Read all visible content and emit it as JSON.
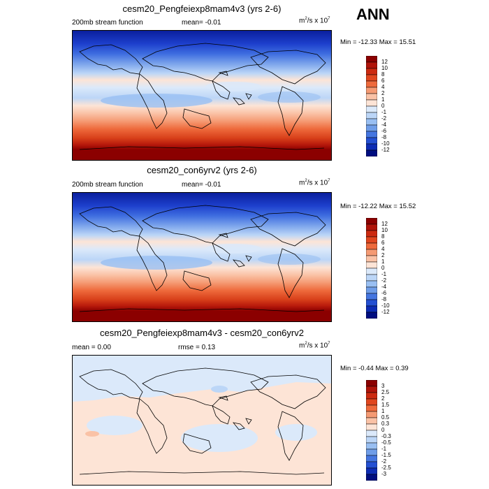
{
  "season": "ANN",
  "panels": [
    {
      "title": "cesm20_Pengfeiexp8mam4v3 (yrs 2-6)",
      "left_label": "200mb stream function",
      "mid_label": "mean=  -0.01",
      "units": "m",
      "units_sup1": "2",
      "units_mid": "/s x 10",
      "units_sup2": "7",
      "minmax": "Min = -12.33 Max =  15.51"
    },
    {
      "title": "cesm20_con6yrv2 (yrs 2-6)",
      "left_label": "200mb stream function",
      "mid_label": "mean=  -0.01",
      "units": "m",
      "units_sup1": "2",
      "units_mid": "/s x 10",
      "units_sup2": "7",
      "minmax": "Min = -12.22 Max =  15.52"
    },
    {
      "title": "cesm20_Pengfeiexp8mam4v3 - cesm20_con6yrv2",
      "left_label": "mean =   0.00",
      "mid_label": "rmse =   0.13",
      "units": "m",
      "units_sup1": "2",
      "units_mid": "/s x 10",
      "units_sup2": "7",
      "minmax": "Min = -0.44 Max =   0.39"
    }
  ],
  "colorbars": {
    "field": {
      "labels": [
        "12",
        "10",
        "8",
        "6",
        "4",
        "2",
        "1",
        "0",
        "-1",
        "-2",
        "-4",
        "-6",
        "-8",
        "-10",
        "-12"
      ],
      "colors": [
        "#8b0000",
        "#b0140a",
        "#cc2a10",
        "#e0461e",
        "#ee6a3c",
        "#f59a73",
        "#fac2a6",
        "#fde4d6",
        "#dbe9fa",
        "#bcd6f7",
        "#99bff2",
        "#6f9de8",
        "#4576e0",
        "#2450d2",
        "#0d2cb4",
        "#000e80"
      ]
    },
    "diff": {
      "labels": [
        "3",
        "2.5",
        "2",
        "1.5",
        "1",
        "0.5",
        "0.3",
        "0",
        "-0.3",
        "-0.5",
        "-1",
        "-1.5",
        "-2",
        "-2.5",
        "-3"
      ],
      "colors": [
        "#8b0000",
        "#b0140a",
        "#cc2a10",
        "#e0461e",
        "#ee6a3c",
        "#f59a73",
        "#fac2a6",
        "#fde4d6",
        "#dbe9fa",
        "#bcd6f7",
        "#99bff2",
        "#6f9de8",
        "#4576e0",
        "#2450d2",
        "#0d2cb4",
        "#000e80"
      ]
    }
  },
  "chart_data": [
    {
      "type": "heatmap",
      "title": "cesm20_Pengfeiexp8mam4v3 (yrs 2-6)",
      "variable": "200mb stream function",
      "units": "m2/s x 10^7",
      "mean": -0.01,
      "min": -12.33,
      "max": 15.51,
      "contour_levels": [
        -12,
        -10,
        -8,
        -6,
        -4,
        -2,
        -1,
        0,
        1,
        2,
        4,
        6,
        8,
        10,
        12
      ],
      "pattern": "negative (blue) in northern hemisphere, positive (red) in southern hemisphere"
    },
    {
      "type": "heatmap",
      "title": "cesm20_con6yrv2 (yrs 2-6)",
      "variable": "200mb stream function",
      "units": "m2/s x 10^7",
      "mean": -0.01,
      "min": -12.22,
      "max": 15.52,
      "contour_levels": [
        -12,
        -10,
        -8,
        -6,
        -4,
        -2,
        -1,
        0,
        1,
        2,
        4,
        6,
        8,
        10,
        12
      ],
      "pattern": "negative (blue) in northern hemisphere, positive (red) in southern hemisphere"
    },
    {
      "type": "heatmap",
      "title": "cesm20_Pengfeiexp8mam4v3 - cesm20_con6yrv2",
      "units": "m2/s x 10^7",
      "mean": 0.0,
      "rmse": 0.13,
      "min": -0.44,
      "max": 0.39,
      "contour_levels": [
        -3,
        -2.5,
        -2,
        -1.5,
        -1,
        -0.5,
        -0.3,
        0,
        0.3,
        0.5,
        1,
        1.5,
        2,
        2.5,
        3
      ]
    }
  ]
}
